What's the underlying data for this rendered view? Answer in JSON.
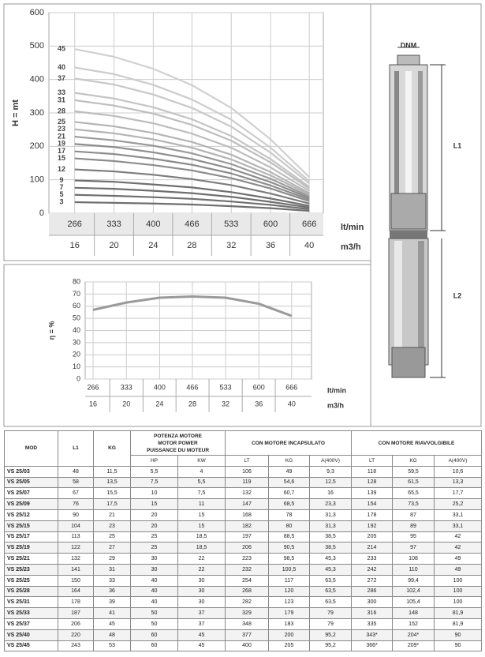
{
  "chart_data": [
    {
      "type": "line",
      "ylabel": "H = mt",
      "xlabel": "lt/min",
      "x2label": "m3/h",
      "x": [
        266,
        333,
        400,
        466,
        533,
        600,
        666
      ],
      "xlim": [
        222,
        690
      ],
      "ylim": [
        0,
        600
      ],
      "yticks": [
        0,
        100,
        200,
        300,
        400,
        500,
        600
      ],
      "xticks": [
        266,
        333,
        400,
        466,
        533,
        600,
        666
      ],
      "x2ticks": [
        16,
        20,
        24,
        28,
        32,
        36,
        40
      ],
      "grid": true,
      "series": [
        {
          "name": "3",
          "color": "#6f6f6f",
          "values": [
            33,
            31,
            29,
            26,
            21,
            15,
            7
          ]
        },
        {
          "name": "5",
          "color": "#6f6f6f",
          "values": [
            55,
            52,
            48,
            43,
            35,
            25,
            12
          ]
        },
        {
          "name": "7",
          "color": "#6f6f6f",
          "values": [
            76,
            73,
            67,
            60,
            49,
            34,
            17
          ]
        },
        {
          "name": "9",
          "color": "#6f6f6f",
          "values": [
            98,
            94,
            86,
            77,
            63,
            44,
            22
          ]
        },
        {
          "name": "12",
          "color": "#7c7c7c",
          "values": [
            131,
            125,
            115,
            102,
            84,
            59,
            29
          ]
        },
        {
          "name": "15",
          "color": "#8c8c8c",
          "values": [
            164,
            156,
            144,
            128,
            105,
            74,
            36
          ]
        },
        {
          "name": "17",
          "color": "#8c8c8c",
          "values": [
            185,
            177,
            163,
            145,
            119,
            83,
            41
          ]
        },
        {
          "name": "19",
          "color": "#8c8c8c",
          "values": [
            207,
            198,
            182,
            162,
            133,
            93,
            46
          ]
        },
        {
          "name": "21",
          "color": "#9a9a9a",
          "values": [
            229,
            218,
            202,
            179,
            147,
            103,
            50
          ]
        },
        {
          "name": "23",
          "color": "#b4b4b4",
          "values": [
            251,
            239,
            221,
            196,
            161,
            113,
            55
          ]
        },
        {
          "name": "25",
          "color": "#b4b4b4",
          "values": [
            273,
            260,
            240,
            213,
            175,
            123,
            60
          ]
        },
        {
          "name": "28",
          "color": "#bdbdbd",
          "values": [
            305,
            291,
            269,
            238,
            196,
            137,
            67
          ]
        },
        {
          "name": "31",
          "color": "#bdbdbd",
          "values": [
            338,
            322,
            298,
            264,
            217,
            152,
            74
          ]
        },
        {
          "name": "33",
          "color": "#c4c4c4",
          "values": [
            360,
            343,
            317,
            281,
            231,
            162,
            79
          ]
        },
        {
          "name": "37",
          "color": "#c8c8c8",
          "values": [
            403,
            385,
            355,
            315,
            259,
            181,
            89
          ]
        },
        {
          "name": "40",
          "color": "#cccccc",
          "values": [
            436,
            416,
            384,
            340,
            280,
            196,
            96
          ]
        },
        {
          "name": "45",
          "color": "#d0d0d0",
          "values": [
            491,
            468,
            432,
            383,
            315,
            221,
            108
          ]
        }
      ]
    },
    {
      "type": "line",
      "ylabel": "η = %",
      "xlabel": "lt/min",
      "x2label": "m3/h",
      "x": [
        266,
        333,
        400,
        466,
        533,
        600,
        666
      ],
      "xlim": [
        250,
        706
      ],
      "ylim": [
        0,
        80
      ],
      "yticks": [
        0,
        10,
        20,
        30,
        40,
        50,
        60,
        70,
        80
      ],
      "xticks": [
        266,
        333,
        400,
        466,
        533,
        600,
        666
      ],
      "x2ticks": [
        16,
        20,
        24,
        28,
        32,
        36,
        40
      ],
      "grid": true,
      "series": [
        {
          "name": "η",
          "color": "#9a9a9a",
          "values": [
            57,
            63,
            67,
            68,
            67,
            62,
            52
          ]
        }
      ]
    }
  ],
  "diagram": {
    "dnm": "DNM",
    "l1": "L1",
    "l2": "L2"
  },
  "table": {
    "header": [
      "MOD",
      "L1",
      "KG",
      [
        "POTENZA MOTORE",
        "MOTOR POWER",
        "PUISSANCE DU MOTEUR"
      ],
      "CON MOTORE INCAPSULATO",
      "CON MOTORE RIAVVOLGIBILE"
    ],
    "subheader": [
      "HP",
      "KW",
      "LT",
      "KG",
      "A(400V)",
      "LT",
      "KG",
      "A(400V)"
    ],
    "rows": [
      [
        "VS 25/03",
        "48",
        "11,5",
        "5,5",
        "4",
        "106",
        "49",
        "9,3",
        "118",
        "59,5",
        "10,6"
      ],
      [
        "VS 25/05",
        "58",
        "13,5",
        "7,5",
        "5,5",
        "119",
        "54,6",
        "12,5",
        "128",
        "61,5",
        "13,3"
      ],
      [
        "VS 25/07",
        "67",
        "15,5",
        "10",
        "7,5",
        "132",
        "60,7",
        "16",
        "139",
        "65,5",
        "17,7"
      ],
      [
        "VS 25/09",
        "76",
        "17,5",
        "15",
        "11",
        "147",
        "68,5",
        "23,3",
        "154",
        "73,5",
        "25,2"
      ],
      [
        "VS 25/12",
        "90",
        "21",
        "20",
        "15",
        "168",
        "78",
        "31,3",
        "178",
        "87",
        "33,1"
      ],
      [
        "VS 25/15",
        "104",
        "23",
        "20",
        "15",
        "182",
        "80",
        "31,3",
        "192",
        "89",
        "33,1"
      ],
      [
        "VS 25/17",
        "113",
        "25",
        "25",
        "18,5",
        "197",
        "88,5",
        "38,5",
        "205",
        "95",
        "42"
      ],
      [
        "VS 25/19",
        "122",
        "27",
        "25",
        "18,5",
        "206",
        "90,5",
        "38,5",
        "214",
        "97",
        "42"
      ],
      [
        "VS 25/21",
        "132",
        "29",
        "30",
        "22",
        "223",
        "98,5",
        "45,3",
        "233",
        "108",
        "49"
      ],
      [
        "VS 25/23",
        "141",
        "31",
        "30",
        "22",
        "232",
        "100,5",
        "45,3",
        "242",
        "110",
        "49"
      ],
      [
        "VS 25/25",
        "150",
        "33",
        "40",
        "30",
        "254",
        "117",
        "63,5",
        "272",
        "99,4",
        "100"
      ],
      [
        "VS 25/28",
        "164",
        "36",
        "40",
        "30",
        "268",
        "120",
        "63,5",
        "286",
        "102,4",
        "100"
      ],
      [
        "VS 25/31",
        "178",
        "39",
        "40",
        "30",
        "282",
        "123",
        "63,5",
        "300",
        "105,4",
        "100"
      ],
      [
        "VS 25/33",
        "187",
        "41",
        "50",
        "37",
        "329",
        "179",
        "79",
        "316",
        "148",
        "81,9"
      ],
      [
        "VS 25/37",
        "206",
        "45",
        "50",
        "37",
        "348",
        "183",
        "79",
        "335",
        "152",
        "81,9"
      ],
      [
        "VS 25/40",
        "220",
        "48",
        "60",
        "45",
        "377",
        "200",
        "95,2",
        "343*",
        "204*",
        "90"
      ],
      [
        "VS 25/45",
        "243",
        "53",
        "60",
        "45",
        "400",
        "205",
        "95,2",
        "366*",
        "209*",
        "90"
      ]
    ]
  }
}
